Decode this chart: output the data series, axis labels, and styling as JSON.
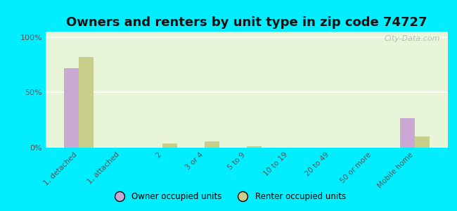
{
  "title": "Owners and renters by unit type in zip code 74727",
  "categories": [
    "1, detached",
    "1, attached",
    "2",
    "3 or 4",
    "5 to 9",
    "10 to 19",
    "20 to 49",
    "50 or more",
    "Mobile home"
  ],
  "owner_values": [
    72,
    0,
    0,
    0,
    0,
    0,
    0,
    0,
    27
  ],
  "renter_values": [
    82,
    0,
    4,
    6,
    1,
    0,
    0,
    0,
    10
  ],
  "owner_color": "#c9a8d4",
  "renter_color": "#c8cf8a",
  "background_color": "#00eeff",
  "plot_bg_color": "#e8f5d8",
  "ylabel_ticks": [
    "0%",
    "50%",
    "100%"
  ],
  "ytick_vals": [
    0,
    50,
    100
  ],
  "ylim": [
    0,
    105
  ],
  "legend_owner": "Owner occupied units",
  "legend_renter": "Renter occupied units",
  "title_fontsize": 13,
  "bar_width": 0.35,
  "watermark": "City-Data.com"
}
